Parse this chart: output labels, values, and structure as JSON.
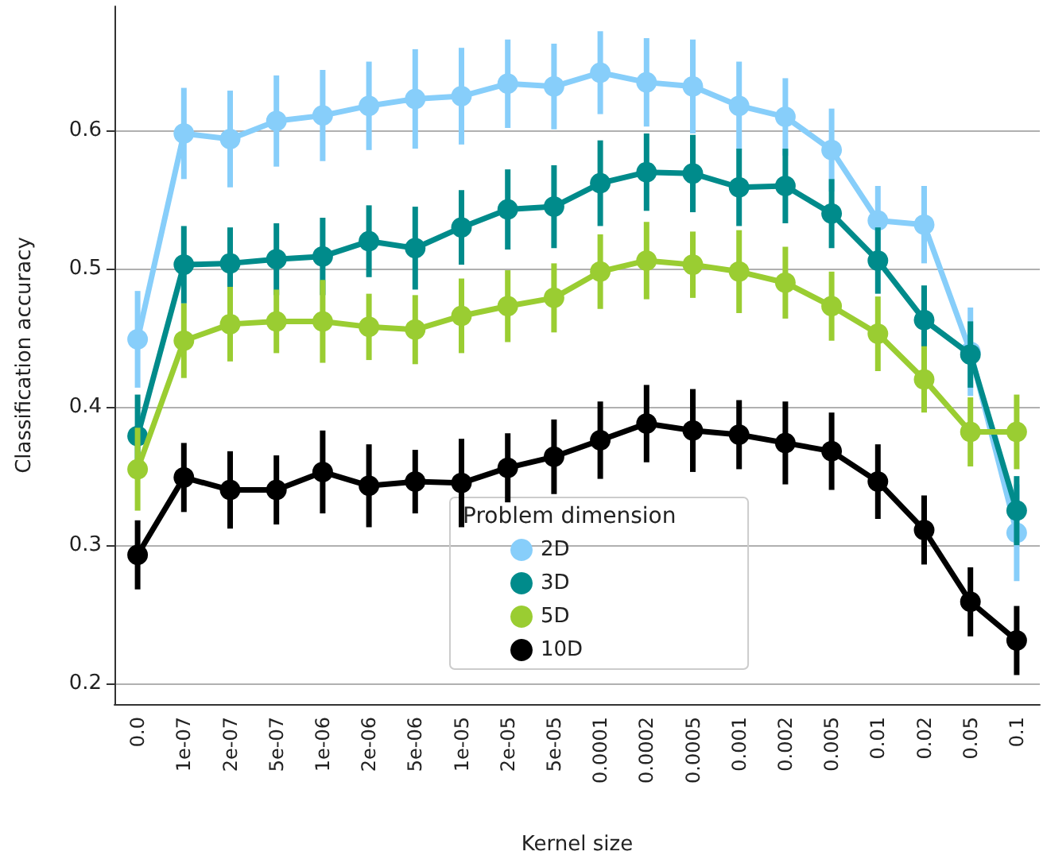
{
  "chart_data": {
    "type": "line",
    "xlabel": "Kernel size",
    "ylabel": "Classification accuracy",
    "legend_title": "Problem dimension",
    "categories": [
      "0.0",
      "1e-07",
      "2e-07",
      "5e-07",
      "1e-06",
      "2e-06",
      "5e-06",
      "1e-05",
      "2e-05",
      "5e-05",
      "0.0001",
      "0.0002",
      "0.0005",
      "0.001",
      "0.002",
      "0.005",
      "0.01",
      "0.02",
      "0.05",
      "0.1"
    ],
    "series": [
      {
        "name": "2D",
        "color": "#87cefa",
        "values": [
          0.449,
          0.598,
          0.594,
          0.607,
          0.611,
          0.618,
          0.623,
          0.625,
          0.634,
          0.632,
          0.642,
          0.635,
          0.632,
          0.618,
          0.61,
          0.586,
          0.535,
          0.532,
          0.44,
          0.309
        ],
        "errors": [
          0.035,
          0.033,
          0.035,
          0.033,
          0.033,
          0.032,
          0.036,
          0.035,
          0.032,
          0.031,
          0.03,
          0.032,
          0.034,
          0.032,
          0.028,
          0.03,
          0.025,
          0.028,
          0.032,
          0.035
        ]
      },
      {
        "name": "3D",
        "color": "#008b8b",
        "values": [
          0.379,
          0.503,
          0.504,
          0.507,
          0.509,
          0.52,
          0.515,
          0.53,
          0.543,
          0.545,
          0.562,
          0.57,
          0.569,
          0.559,
          0.56,
          0.54,
          0.506,
          0.463,
          0.438,
          0.325
        ],
        "errors": [
          0.03,
          0.028,
          0.026,
          0.026,
          0.028,
          0.026,
          0.03,
          0.027,
          0.029,
          0.03,
          0.031,
          0.028,
          0.028,
          0.028,
          0.027,
          0.025,
          0.024,
          0.025,
          0.024,
          0.025
        ]
      },
      {
        "name": "5D",
        "color": "#9acd32",
        "values": [
          0.355,
          0.448,
          0.46,
          0.462,
          0.462,
          0.458,
          0.456,
          0.466,
          0.473,
          0.479,
          0.498,
          0.506,
          0.503,
          0.498,
          0.49,
          0.473,
          0.453,
          0.42,
          0.382,
          0.382
        ],
        "errors": [
          0.03,
          0.027,
          0.027,
          0.023,
          0.03,
          0.024,
          0.025,
          0.027,
          0.026,
          0.025,
          0.027,
          0.028,
          0.024,
          0.03,
          0.026,
          0.025,
          0.027,
          0.024,
          0.025,
          0.027
        ]
      },
      {
        "name": "10D",
        "color": "#000000",
        "values": [
          0.293,
          0.349,
          0.34,
          0.34,
          0.353,
          0.343,
          0.346,
          0.345,
          0.356,
          0.364,
          0.376,
          0.388,
          0.383,
          0.38,
          0.374,
          0.368,
          0.346,
          0.311,
          0.259,
          0.231
        ],
        "errors": [
          0.025,
          0.025,
          0.028,
          0.025,
          0.03,
          0.03,
          0.023,
          0.032,
          0.025,
          0.027,
          0.028,
          0.028,
          0.03,
          0.025,
          0.03,
          0.028,
          0.027,
          0.025,
          0.025,
          0.025
        ]
      }
    ],
    "ylim": [
      0.185,
      0.69
    ],
    "yticks": [
      0.2,
      0.3,
      0.4,
      0.5,
      0.6
    ],
    "grid": "y",
    "legend": "bottom",
    "marker": "circle",
    "line_style": "solid"
  }
}
